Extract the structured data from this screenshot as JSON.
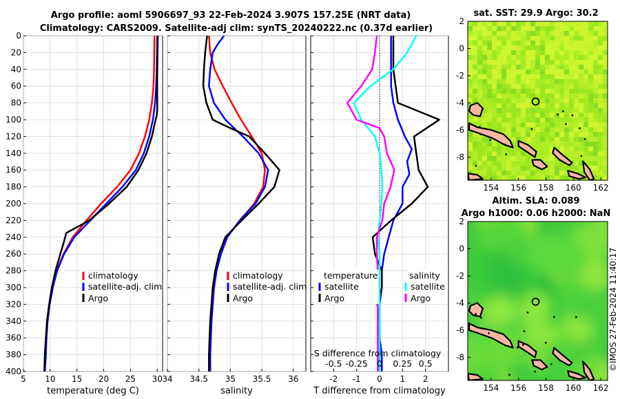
{
  "title": {
    "line1": "Argo profile: aoml 5906697_93 22-Feb-2024 3.907S 157.25E (NRT data)",
    "line2": "Climatology: CARS2009. Satellite-adj clim: synTS_20240222.nc (0.37d earlier)"
  },
  "colors": {
    "climatology": "#ff0000",
    "satellite": "#0000ff",
    "argo": "#000000",
    "cyan": "#00ffff",
    "magenta": "#ff00ff",
    "land": "#f5b7a0"
  },
  "depth_ticks": [
    0,
    20,
    40,
    60,
    80,
    100,
    120,
    140,
    160,
    180,
    200,
    220,
    240,
    260,
    280,
    300,
    320,
    340,
    360,
    380,
    400
  ],
  "chart_data": [
    {
      "id": "temperature",
      "type": "line",
      "xlabel": "temperature (deg C)",
      "ylabel": "",
      "xlim": [
        5,
        31
      ],
      "ylim": [
        0,
        400
      ],
      "xticks": [
        5,
        10,
        15,
        20,
        25,
        30
      ],
      "legend": {
        "position": "lower-right",
        "labels": [
          "climatology",
          "satellite-adj. clim",
          "Argo"
        ]
      },
      "series": [
        {
          "name": "climatology",
          "color": "#ff0000",
          "points": [
            [
              29.5,
              0
            ],
            [
              29.4,
              40
            ],
            [
              29.3,
              60
            ],
            [
              29.0,
              80
            ],
            [
              28.5,
              100
            ],
            [
              27.7,
              120
            ],
            [
              26.6,
              140
            ],
            [
              25.0,
              160
            ],
            [
              22.5,
              180
            ],
            [
              19.5,
              200
            ],
            [
              16.8,
              220
            ],
            [
              14.2,
              240
            ],
            [
              12.5,
              260
            ],
            [
              11.2,
              280
            ],
            [
              10.4,
              300
            ],
            [
              9.9,
              320
            ],
            [
              9.5,
              340
            ],
            [
              9.3,
              360
            ],
            [
              9.1,
              380
            ],
            [
              8.9,
              400
            ]
          ]
        },
        {
          "name": "satellite-adj. clim",
          "color": "#0000ff",
          "points": [
            [
              30.0,
              0
            ],
            [
              29.9,
              40
            ],
            [
              29.8,
              60
            ],
            [
              29.6,
              80
            ],
            [
              29.2,
              100
            ],
            [
              28.5,
              120
            ],
            [
              27.5,
              140
            ],
            [
              26.0,
              160
            ],
            [
              23.5,
              180
            ],
            [
              20.5,
              200
            ],
            [
              17.5,
              220
            ],
            [
              14.5,
              240
            ],
            [
              12.6,
              260
            ],
            [
              11.3,
              280
            ],
            [
              10.5,
              300
            ],
            [
              9.9,
              320
            ],
            [
              9.5,
              340
            ],
            [
              9.3,
              360
            ],
            [
              9.2,
              380
            ],
            [
              9.0,
              400
            ]
          ]
        },
        {
          "name": "Argo",
          "color": "#000000",
          "points": [
            [
              30.1,
              0
            ],
            [
              30.0,
              50
            ],
            [
              30.0,
              90
            ],
            [
              29.9,
              95
            ],
            [
              29.7,
              100
            ],
            [
              29.0,
              120
            ],
            [
              28.0,
              140
            ],
            [
              26.5,
              160
            ],
            [
              24.3,
              180
            ],
            [
              21.0,
              200
            ],
            [
              17.3,
              220
            ],
            [
              13.0,
              235
            ],
            [
              12.6,
              245
            ],
            [
              11.8,
              262
            ],
            [
              11.0,
              280
            ],
            [
              10.3,
              300
            ],
            [
              9.8,
              320
            ],
            [
              9.4,
              340
            ],
            [
              9.2,
              360
            ],
            [
              9.0,
              380
            ],
            [
              8.9,
              400
            ]
          ]
        }
      ]
    },
    {
      "id": "salinity",
      "type": "line",
      "xlabel": "salinity",
      "ylabel": "",
      "xlim": [
        34,
        36.2
      ],
      "ylim": [
        0,
        400
      ],
      "xticks": [
        34,
        34.5,
        35,
        35.5,
        36
      ],
      "legend": {
        "position": "lower-right",
        "labels": [
          "climatology",
          "satellite-adj. clim",
          "Argo"
        ]
      },
      "series": [
        {
          "name": "climatology",
          "color": "#ff0000",
          "points": [
            [
              34.66,
              0
            ],
            [
              34.68,
              20
            ],
            [
              34.75,
              40
            ],
            [
              34.88,
              60
            ],
            [
              35.02,
              80
            ],
            [
              35.17,
              100
            ],
            [
              35.34,
              120
            ],
            [
              35.5,
              140
            ],
            [
              35.55,
              160
            ],
            [
              35.52,
              180
            ],
            [
              35.38,
              200
            ],
            [
              35.15,
              220
            ],
            [
              34.95,
              240
            ],
            [
              34.85,
              260
            ],
            [
              34.78,
              280
            ],
            [
              34.74,
              300
            ],
            [
              34.72,
              320
            ],
            [
              34.7,
              340
            ],
            [
              34.69,
              360
            ],
            [
              34.68,
              380
            ],
            [
              34.68,
              400
            ]
          ]
        },
        {
          "name": "satellite-adj. clim",
          "color": "#0000ff",
          "points": [
            [
              34.9,
              0
            ],
            [
              34.8,
              10
            ],
            [
              34.72,
              20
            ],
            [
              34.68,
              40
            ],
            [
              34.66,
              60
            ],
            [
              34.74,
              80
            ],
            [
              34.92,
              100
            ],
            [
              35.2,
              120
            ],
            [
              35.45,
              140
            ],
            [
              35.6,
              160
            ],
            [
              35.55,
              180
            ],
            [
              35.4,
              200
            ],
            [
              35.15,
              220
            ],
            [
              34.95,
              240
            ],
            [
              34.85,
              260
            ],
            [
              34.78,
              280
            ],
            [
              34.74,
              300
            ],
            [
              34.72,
              320
            ],
            [
              34.7,
              340
            ],
            [
              34.69,
              360
            ],
            [
              34.68,
              380
            ],
            [
              34.68,
              400
            ]
          ]
        },
        {
          "name": "Argo",
          "color": "#000000",
          "points": [
            [
              34.63,
              0
            ],
            [
              34.6,
              20
            ],
            [
              34.58,
              40
            ],
            [
              34.57,
              60
            ],
            [
              34.62,
              80
            ],
            [
              34.72,
              100
            ],
            [
              35.0,
              110
            ],
            [
              35.3,
              120
            ],
            [
              35.55,
              140
            ],
            [
              35.78,
              160
            ],
            [
              35.7,
              180
            ],
            [
              35.45,
              200
            ],
            [
              35.18,
              220
            ],
            [
              34.92,
              240
            ],
            [
              34.82,
              260
            ],
            [
              34.76,
              280
            ],
            [
              34.72,
              300
            ],
            [
              34.7,
              320
            ],
            [
              34.68,
              340
            ],
            [
              34.67,
              360
            ],
            [
              34.66,
              380
            ],
            [
              34.66,
              400
            ]
          ]
        }
      ]
    },
    {
      "id": "difference",
      "type": "line",
      "xlabel": "T difference from climatology",
      "xlabel2": "S difference from climatology",
      "xlim": [
        -3,
        3
      ],
      "x2lim": [
        -0.75,
        0.75
      ],
      "ylim": [
        0,
        400
      ],
      "xticks": [
        -2,
        -1,
        0,
        1,
        2
      ],
      "x2ticks": [
        "-0.5",
        "-0.25",
        "0",
        "0.25",
        "0.5"
      ],
      "legend_t": {
        "title": "temperature",
        "labels": [
          "satellite",
          "Argo"
        ]
      },
      "legend_s": {
        "title": "salinity",
        "labels": [
          "satellite",
          "Argo"
        ]
      },
      "series": [
        {
          "name": "temperature satellite",
          "color": "#0000ff",
          "points": [
            [
              0.5,
              0
            ],
            [
              0.5,
              40
            ],
            [
              0.5,
              60
            ],
            [
              0.6,
              80
            ],
            [
              0.8,
              100
            ],
            [
              1.1,
              120
            ],
            [
              1.4,
              135
            ],
            [
              1.2,
              150
            ],
            [
              1.3,
              165
            ],
            [
              1.0,
              180
            ],
            [
              1.0,
              200
            ],
            [
              0.6,
              220
            ],
            [
              0.4,
              240
            ],
            [
              0.2,
              260
            ],
            [
              0.1,
              280
            ],
            [
              0.1,
              300
            ],
            [
              0.0,
              320
            ],
            [
              0.0,
              340
            ],
            [
              0.0,
              360
            ],
            [
              0.1,
              380
            ],
            [
              0.1,
              400
            ]
          ]
        },
        {
          "name": "temperature Argo",
          "color": "#000000",
          "points": [
            [
              0.6,
              0
            ],
            [
              0.6,
              40
            ],
            [
              0.7,
              60
            ],
            [
              0.8,
              80
            ],
            [
              2.6,
              100
            ],
            [
              1.5,
              120
            ],
            [
              1.6,
              140
            ],
            [
              1.7,
              160
            ],
            [
              2.1,
              180
            ],
            [
              1.4,
              200
            ],
            [
              0.5,
              220
            ],
            [
              -0.3,
              240
            ],
            [
              -0.2,
              260
            ],
            [
              0.1,
              280
            ],
            [
              0.1,
              300
            ],
            [
              -0.1,
              320
            ],
            [
              0.0,
              340
            ],
            [
              0.0,
              360
            ],
            [
              0.0,
              380
            ],
            [
              0.0,
              400
            ]
          ]
        },
        {
          "name": "salinity satellite",
          "color": "#00ffff",
          "points": [
            [
              0.4,
              0
            ],
            [
              0.3,
              20
            ],
            [
              0.15,
              40
            ],
            [
              -0.1,
              60
            ],
            [
              -0.28,
              80
            ],
            [
              -0.2,
              100
            ],
            [
              -0.05,
              120
            ],
            [
              0.0,
              140
            ],
            [
              0.02,
              160
            ],
            [
              0.03,
              180
            ],
            [
              0.02,
              200
            ],
            [
              0.0,
              220
            ],
            [
              -0.02,
              240
            ],
            [
              0.0,
              260
            ],
            [
              0.0,
              280
            ],
            [
              0.0,
              300
            ],
            [
              0.0,
              320
            ],
            [
              0.0,
              340
            ],
            [
              0.0,
              360
            ],
            [
              0.0,
              380
            ],
            [
              0.0,
              400
            ]
          ]
        },
        {
          "name": "salinity Argo",
          "color": "#ff00ff",
          "points": [
            [
              -0.03,
              0
            ],
            [
              -0.05,
              20
            ],
            [
              -0.08,
              40
            ],
            [
              -0.2,
              60
            ],
            [
              -0.35,
              80
            ],
            [
              -0.25,
              100
            ],
            [
              0.0,
              110
            ],
            [
              0.05,
              120
            ],
            [
              0.08,
              140
            ],
            [
              0.16,
              160
            ],
            [
              0.12,
              180
            ],
            [
              0.05,
              200
            ],
            [
              0.03,
              220
            ],
            [
              -0.03,
              240
            ],
            [
              -0.03,
              260
            ],
            [
              -0.02,
              280
            ],
            [
              -0.02,
              300
            ],
            [
              -0.02,
              320
            ],
            [
              -0.02,
              340
            ],
            [
              -0.02,
              360
            ],
            [
              -0.02,
              380
            ],
            [
              -0.02,
              400
            ]
          ]
        }
      ]
    }
  ],
  "maps": [
    {
      "id": "sst-map",
      "title": "sat. SST: 29.9 Argo: 30.2",
      "type": "heatmap",
      "xticks": [
        154,
        156,
        158,
        160,
        162
      ],
      "yticks": [
        2,
        0,
        -2,
        -4,
        -6,
        -8
      ],
      "xlim": [
        152.3,
        162.5
      ],
      "ylim": [
        -9.7,
        2
      ],
      "argo_position": [
        157.25,
        -3.907
      ]
    },
    {
      "id": "sla-map",
      "title": "Altim. SLA: 0.089",
      "title2": "Argo h1000: 0.06 h2000: NaN",
      "type": "heatmap",
      "xticks": [
        154,
        156,
        158,
        160,
        162
      ],
      "yticks": [
        2,
        0,
        -2,
        -4,
        -6,
        -8
      ],
      "xlim": [
        152.3,
        162.5
      ],
      "ylim": [
        -9.7,
        2
      ],
      "argo_position": [
        157.25,
        -3.907
      ]
    }
  ],
  "credit": "©IMOS 27-Feb-2024 11:40:17"
}
